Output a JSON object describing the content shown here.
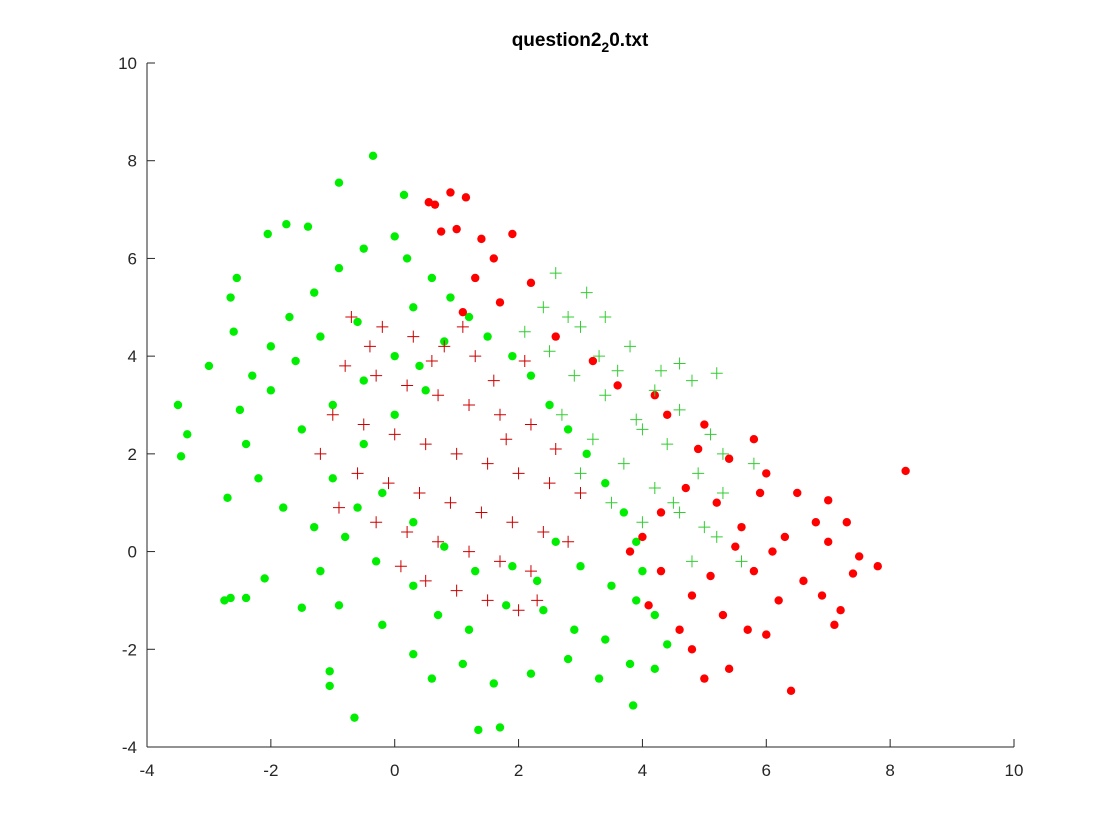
{
  "chart_data": {
    "type": "scatter",
    "title": "question2",
    "title_subscript": "2",
    "title_suffix": "0.txt",
    "xlabel": "",
    "ylabel": "",
    "xlim": [
      -4,
      10
    ],
    "ylim": [
      -4,
      10
    ],
    "x_ticks": [
      -4,
      -2,
      0,
      2,
      4,
      6,
      8,
      10
    ],
    "y_ticks": [
      -4,
      -2,
      0,
      2,
      4,
      6,
      8,
      10
    ],
    "grid": false,
    "legend": "none",
    "series": [
      {
        "marker": "filled-circle",
        "color": "#00ee00",
        "points": [
          [
            -0.35,
            8.1
          ],
          [
            -0.9,
            7.55
          ],
          [
            0.15,
            7.3
          ],
          [
            -1.75,
            6.7
          ],
          [
            -1.4,
            6.65
          ],
          [
            -2.05,
            6.5
          ],
          [
            0.0,
            6.45
          ],
          [
            -2.55,
            5.6
          ],
          [
            -2.65,
            5.2
          ],
          [
            -3.5,
            3.0
          ],
          [
            -3.35,
            2.4
          ],
          [
            -3.45,
            1.95
          ],
          [
            -3.0,
            3.8
          ],
          [
            -2.7,
            1.1
          ],
          [
            -2.75,
            -1.0
          ],
          [
            -2.65,
            -0.95
          ],
          [
            -2.4,
            -0.95
          ],
          [
            -2.1,
            -0.55
          ],
          [
            -1.05,
            -2.45
          ],
          [
            -1.05,
            -2.75
          ],
          [
            -0.65,
            -3.4
          ],
          [
            1.35,
            -3.65
          ],
          [
            1.7,
            -3.6
          ],
          [
            3.85,
            -3.15
          ],
          [
            -1.5,
            -1.15
          ],
          [
            -0.9,
            -1.1
          ],
          [
            -0.2,
            -1.5
          ],
          [
            0.3,
            -2.1
          ],
          [
            0.6,
            -2.6
          ],
          [
            1.1,
            -2.3
          ],
          [
            1.6,
            -2.7
          ],
          [
            2.2,
            -2.5
          ],
          [
            2.8,
            -2.2
          ],
          [
            3.3,
            -2.6
          ],
          [
            3.8,
            -2.3
          ],
          [
            4.2,
            -2.4
          ],
          [
            4.4,
            -1.9
          ],
          [
            4.2,
            -1.3
          ],
          [
            3.9,
            -1.0
          ],
          [
            3.5,
            -0.7
          ],
          [
            3.0,
            -0.3
          ],
          [
            2.6,
            0.2
          ],
          [
            2.3,
            -0.6
          ],
          [
            1.8,
            -1.1
          ],
          [
            1.2,
            -1.6
          ],
          [
            0.7,
            -1.3
          ],
          [
            0.3,
            -0.7
          ],
          [
            -0.3,
            -0.2
          ],
          [
            -0.8,
            0.3
          ],
          [
            -1.3,
            0.5
          ],
          [
            -1.8,
            0.9
          ],
          [
            -2.2,
            1.5
          ],
          [
            -2.4,
            2.2
          ],
          [
            -2.5,
            2.9
          ],
          [
            -2.3,
            3.6
          ],
          [
            -2.0,
            4.2
          ],
          [
            -1.7,
            4.8
          ],
          [
            -1.3,
            5.3
          ],
          [
            -0.9,
            5.8
          ],
          [
            -0.5,
            6.2
          ],
          [
            0.2,
            6.0
          ],
          [
            0.6,
            5.6
          ],
          [
            0.9,
            5.2
          ],
          [
            1.2,
            4.8
          ],
          [
            1.5,
            4.4
          ],
          [
            1.9,
            4.0
          ],
          [
            2.2,
            3.6
          ],
          [
            2.5,
            3.0
          ],
          [
            2.8,
            2.5
          ],
          [
            3.1,
            2.0
          ],
          [
            3.4,
            1.4
          ],
          [
            3.7,
            0.8
          ],
          [
            3.9,
            0.2
          ],
          [
            4.0,
            -0.4
          ],
          [
            -1.0,
            3.0
          ],
          [
            -0.5,
            3.5
          ],
          [
            0.0,
            4.0
          ],
          [
            -1.5,
            2.5
          ],
          [
            -1.0,
            1.5
          ],
          [
            -0.5,
            2.2
          ],
          [
            0.0,
            2.8
          ],
          [
            0.5,
            3.3
          ],
          [
            -2.0,
            3.3
          ],
          [
            -1.6,
            3.9
          ],
          [
            -1.2,
            4.4
          ],
          [
            -0.6,
            4.7
          ],
          [
            0.3,
            5.0
          ],
          [
            0.8,
            4.3
          ],
          [
            0.4,
            3.8
          ],
          [
            -0.2,
            1.2
          ],
          [
            0.3,
            0.6
          ],
          [
            0.8,
            0.1
          ],
          [
            1.3,
            -0.4
          ],
          [
            1.9,
            -0.3
          ],
          [
            2.4,
            -1.2
          ],
          [
            2.9,
            -1.6
          ],
          [
            3.4,
            -1.8
          ],
          [
            -1.2,
            -0.4
          ],
          [
            -0.6,
            0.9
          ],
          [
            -2.6,
            4.5
          ]
        ]
      },
      {
        "marker": "filled-circle",
        "color": "#ff0000",
        "points": [
          [
            0.55,
            7.15
          ],
          [
            0.65,
            7.1
          ],
          [
            0.9,
            7.35
          ],
          [
            1.15,
            7.25
          ],
          [
            0.75,
            6.55
          ],
          [
            1.0,
            6.6
          ],
          [
            1.4,
            6.4
          ],
          [
            1.9,
            6.5
          ],
          [
            1.6,
            6.0
          ],
          [
            2.2,
            5.5
          ],
          [
            1.3,
            5.6
          ],
          [
            1.1,
            4.9
          ],
          [
            1.7,
            5.1
          ],
          [
            2.6,
            4.4
          ],
          [
            3.2,
            3.9
          ],
          [
            3.6,
            3.4
          ],
          [
            4.2,
            3.2
          ],
          [
            4.4,
            2.8
          ],
          [
            5.0,
            2.6
          ],
          [
            5.4,
            1.9
          ],
          [
            5.8,
            2.3
          ],
          [
            6.0,
            1.6
          ],
          [
            6.5,
            1.2
          ],
          [
            7.0,
            1.05
          ],
          [
            7.3,
            0.6
          ],
          [
            7.0,
            0.2
          ],
          [
            7.5,
            -0.1
          ],
          [
            7.4,
            -0.45
          ],
          [
            7.2,
            -1.2
          ],
          [
            7.1,
            -1.5
          ],
          [
            6.4,
            -2.85
          ],
          [
            5.0,
            -2.6
          ],
          [
            5.4,
            -2.4
          ],
          [
            4.8,
            -2.0
          ],
          [
            5.7,
            -1.6
          ],
          [
            6.2,
            -1.0
          ],
          [
            6.6,
            -0.6
          ],
          [
            6.1,
            0.0
          ],
          [
            5.6,
            0.5
          ],
          [
            5.2,
            1.0
          ],
          [
            4.7,
            1.3
          ],
          [
            4.3,
            0.8
          ],
          [
            4.0,
            0.3
          ],
          [
            4.3,
            -0.4
          ],
          [
            4.8,
            -0.9
          ],
          [
            5.3,
            -1.3
          ],
          [
            5.8,
            -0.4
          ],
          [
            6.3,
            0.3
          ],
          [
            6.8,
            0.6
          ],
          [
            5.9,
            1.2
          ],
          [
            5.5,
            0.1
          ],
          [
            4.6,
            -1.6
          ],
          [
            8.25,
            1.65
          ],
          [
            4.9,
            2.1
          ],
          [
            5.1,
            -0.5
          ],
          [
            3.8,
            0.0
          ],
          [
            4.1,
            -1.1
          ],
          [
            6.9,
            -0.9
          ],
          [
            7.8,
            -0.3
          ],
          [
            6.0,
            -1.7
          ]
        ]
      },
      {
        "marker": "plus",
        "color": "#33cc33",
        "points": [
          [
            2.6,
            5.7
          ],
          [
            3.1,
            5.3
          ],
          [
            3.4,
            4.8
          ],
          [
            3.8,
            4.2
          ],
          [
            4.6,
            3.85
          ],
          [
            5.2,
            3.65
          ],
          [
            4.8,
            3.5
          ],
          [
            3.0,
            4.6
          ],
          [
            2.4,
            5.0
          ],
          [
            3.6,
            3.7
          ],
          [
            4.2,
            3.3
          ],
          [
            4.6,
            2.9
          ],
          [
            5.1,
            2.4
          ],
          [
            5.3,
            2.0
          ],
          [
            5.8,
            1.8
          ],
          [
            4.9,
            1.6
          ],
          [
            4.4,
            2.2
          ],
          [
            3.9,
            2.7
          ],
          [
            3.4,
            3.2
          ],
          [
            2.9,
            3.6
          ],
          [
            2.5,
            4.1
          ],
          [
            2.1,
            4.5
          ],
          [
            3.2,
            2.3
          ],
          [
            3.7,
            1.8
          ],
          [
            4.2,
            1.3
          ],
          [
            4.6,
            0.8
          ],
          [
            5.2,
            0.3
          ],
          [
            5.6,
            -0.2
          ],
          [
            4.0,
            0.6
          ],
          [
            4.8,
            -0.2
          ],
          [
            5.3,
            1.2
          ],
          [
            3.5,
            1.0
          ],
          [
            3.0,
            1.6
          ],
          [
            2.7,
            2.8
          ],
          [
            4.0,
            2.5
          ],
          [
            3.3,
            4.0
          ],
          [
            2.8,
            4.8
          ],
          [
            4.5,
            1.0
          ],
          [
            5.0,
            0.5
          ],
          [
            4.3,
            3.7
          ]
        ]
      },
      {
        "marker": "plus",
        "color": "#cc0000",
        "points": [
          [
            -0.7,
            4.8
          ],
          [
            -0.2,
            4.6
          ],
          [
            0.3,
            4.4
          ],
          [
            0.8,
            4.2
          ],
          [
            1.3,
            4.0
          ],
          [
            -0.8,
            3.8
          ],
          [
            -0.3,
            3.6
          ],
          [
            0.2,
            3.4
          ],
          [
            0.7,
            3.2
          ],
          [
            1.2,
            3.0
          ],
          [
            1.7,
            2.8
          ],
          [
            2.2,
            2.6
          ],
          [
            -1.0,
            2.8
          ],
          [
            -0.5,
            2.6
          ],
          [
            0.0,
            2.4
          ],
          [
            0.5,
            2.2
          ],
          [
            1.0,
            2.0
          ],
          [
            1.5,
            1.8
          ],
          [
            2.0,
            1.6
          ],
          [
            2.5,
            1.4
          ],
          [
            -0.6,
            1.6
          ],
          [
            -0.1,
            1.4
          ],
          [
            0.4,
            1.2
          ],
          [
            0.9,
            1.0
          ],
          [
            1.4,
            0.8
          ],
          [
            1.9,
            0.6
          ],
          [
            2.4,
            0.4
          ],
          [
            -0.3,
            0.6
          ],
          [
            0.2,
            0.4
          ],
          [
            0.7,
            0.2
          ],
          [
            1.2,
            0.0
          ],
          [
            1.7,
            -0.2
          ],
          [
            2.2,
            -0.4
          ],
          [
            0.5,
            -0.6
          ],
          [
            1.0,
            -0.8
          ],
          [
            1.5,
            -1.0
          ],
          [
            2.0,
            -1.2
          ],
          [
            2.1,
            3.9
          ],
          [
            1.6,
            3.5
          ],
          [
            2.6,
            2.1
          ],
          [
            3.0,
            1.2
          ],
          [
            2.8,
            0.2
          ],
          [
            -1.2,
            2.0
          ],
          [
            -0.9,
            0.9
          ],
          [
            0.1,
            -0.3
          ],
          [
            2.3,
            -1.0
          ],
          [
            1.8,
            2.3
          ],
          [
            0.6,
            3.9
          ],
          [
            1.1,
            4.6
          ],
          [
            -0.4,
            4.2
          ]
        ]
      }
    ]
  }
}
